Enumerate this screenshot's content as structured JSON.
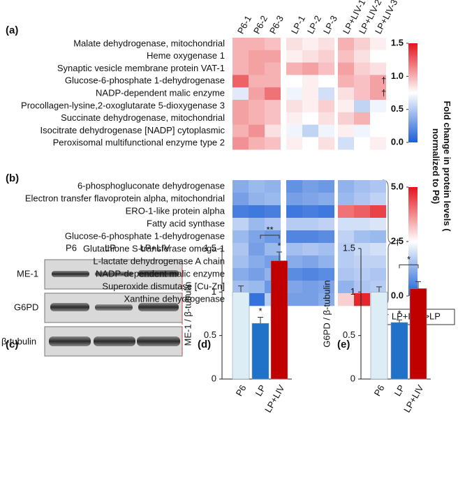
{
  "chart_data": [
    {
      "type": "heatmap",
      "label": "(a)",
      "columns": [
        "P6-1",
        "P6-2",
        "P6-3",
        "LP-1",
        "LP-2",
        "LP-3",
        "LP+LIV-1",
        "LP+LIV-2",
        "LP+LIV-3"
      ],
      "rows": [
        "Malate dehydrogenase, mitochondrial",
        "Heme oxygenase 1",
        "Synaptic vesicle membrane protein VAT-1",
        "Glucose-6-phosphate 1-dehydrogenase",
        "NADP-dependent malic enzyme",
        "Procollagen-lysine,2-oxoglutarate 5-dioxygenase 3",
        "Succinate dehydrogenase, mitochondrial",
        "Isocitrate dehydrogenase [NADP] cytoplasmic",
        "Peroxisomal multifunctional enzyme type 2"
      ],
      "values": [
        [
          1.0,
          1.0,
          0.95,
          0.85,
          0.8,
          0.85,
          1.0,
          0.9,
          0.8
        ],
        [
          1.0,
          1.05,
          1.05,
          0.8,
          0.85,
          0.9,
          0.95,
          0.85,
          0.75
        ],
        [
          1.0,
          1.05,
          1.0,
          1.0,
          1.05,
          0.95,
          1.05,
          0.9,
          0.85
        ],
        [
          1.25,
          1.0,
          1.0,
          0.75,
          0.8,
          0.75,
          1.0,
          0.95,
          1.05
        ],
        [
          0.65,
          1.05,
          1.2,
          0.7,
          0.8,
          0.6,
          0.85,
          0.95,
          1.05
        ],
        [
          1.05,
          1.0,
          0.95,
          0.85,
          0.8,
          0.9,
          0.8,
          0.55,
          0.7
        ],
        [
          1.05,
          1.0,
          0.95,
          0.8,
          0.75,
          0.85,
          0.9,
          1.0,
          0.75
        ],
        [
          1.0,
          1.1,
          0.85,
          0.7,
          0.55,
          0.7,
          0.8,
          0.7,
          0.75
        ],
        [
          1.1,
          1.0,
          0.95,
          0.8,
          0.75,
          0.85,
          0.6,
          0.75,
          0.8
        ]
      ],
      "row_marks": [
        null,
        null,
        null,
        "†",
        "†",
        null,
        null,
        null,
        null
      ],
      "clim": [
        0,
        1.5
      ],
      "cticks": [
        {
          "value": 0,
          "label": "0.0"
        },
        {
          "value": 0.5,
          "label": "0.5"
        },
        {
          "value": 1,
          "label": "1.0"
        },
        {
          "value": 1.5,
          "label": "1.5"
        }
      ],
      "colors": [
        "#1a5fd6",
        "#ffffff",
        "#e3141b"
      ]
    },
    {
      "type": "heatmap",
      "label": "(b)",
      "rows": [
        "6-phosphogluconate dehydrogenase",
        "Electron transfer flavoprotein alpha, mitochondrial",
        "ERO-1-like protein alpha",
        "Fatty acid synthase",
        "Glucose-6-phosphate 1-dehydrogenase",
        "Glutathione S-transferase omega-1",
        "L-lactate dehydrogenase A chain",
        "NADP-dependent malic enzyme",
        "Superoxide dismutase [Cu-Zn]",
        "Xanthine dehydrogenase"
      ],
      "values": [
        [
          1.2,
          1.4,
          1.3,
          0.8,
          1.0,
          0.9,
          1.3,
          1.5,
          1.6
        ],
        [
          1.0,
          1.3,
          1.4,
          1.0,
          1.1,
          1.2,
          1.4,
          1.6,
          1.8
        ],
        [
          0.5,
          0.4,
          0.5,
          0.4,
          0.5,
          0.4,
          4.0,
          4.2,
          4.5
        ],
        [
          1.8,
          1.4,
          1.6,
          1.7,
          1.7,
          1.8,
          2.0,
          2.0,
          2.1
        ],
        [
          1.4,
          1.1,
          0.9,
          0.6,
          0.6,
          0.7,
          1.8,
          1.5,
          1.4
        ],
        [
          1.6,
          1.0,
          1.4,
          1.5,
          1.6,
          1.5,
          1.7,
          1.9,
          2.0
        ],
        [
          1.5,
          1.2,
          1.0,
          1.2,
          1.1,
          1.3,
          1.7,
          1.8,
          1.8
        ],
        [
          1.2,
          1.0,
          1.3,
          0.7,
          0.6,
          0.7,
          1.6,
          1.7,
          1.6
        ],
        [
          1.5,
          1.4,
          0.9,
          1.1,
          1.0,
          1.1,
          1.3,
          1.6,
          1.7
        ],
        [
          1.6,
          0.3,
          1.7,
          1.0,
          1.0,
          1.2,
          3.0,
          4.8,
          2.0
        ]
      ],
      "group_mark": "†",
      "note": "† LP+LIV >LP",
      "clim": [
        0,
        5
      ],
      "cticks": [
        {
          "value": 0,
          "label": "0.0"
        },
        {
          "value": 2.5,
          "label": "2.5"
        },
        {
          "value": 5,
          "label": "5.0"
        }
      ],
      "colors": [
        "#1a5fd6",
        "#ffffff",
        "#e3141b"
      ]
    },
    {
      "type": "bar",
      "label": "(d)",
      "y_label": "ME-1 / β-tubulin",
      "categories": [
        "P6",
        "LP",
        "LP+LIV"
      ],
      "values": [
        1.0,
        0.64,
        1.36
      ],
      "errors": [
        0.07,
        0.07,
        0.1
      ],
      "colors": [
        "#dcedf6",
        "#1f72c8",
        "#c00000"
      ],
      "stars": [
        null,
        "*",
        "*"
      ],
      "bracket": {
        "between": [
          "LP",
          "LP+LIV"
        ],
        "text": "**"
      },
      "ylim": [
        0,
        1.5
      ],
      "yticks": [
        0,
        0.5,
        1,
        1.5
      ]
    },
    {
      "type": "bar",
      "label": "(e)",
      "y_label": "G6PD / β-tubulin",
      "categories": [
        "P6",
        "LP",
        "LP+LIV"
      ],
      "values": [
        1.0,
        0.65,
        1.04
      ],
      "errors": [
        0.06,
        0.03,
        0.08
      ],
      "colors": [
        "#dcedf6",
        "#1f72c8",
        "#c00000"
      ],
      "stars": [
        null,
        "*",
        null
      ],
      "bracket": {
        "between": [
          "LP",
          "LP+LIV"
        ],
        "text": "*"
      },
      "ylim": [
        0,
        1.5
      ],
      "yticks": [
        0,
        0.5,
        1,
        1.5
      ]
    }
  ],
  "colorbar_label": "Fold change in protein levels ( normalized to P6)",
  "blot": {
    "label": "(c)",
    "lanes": [
      "P6",
      "LP",
      "LP+LIV"
    ],
    "rows": [
      "ME-1",
      "G6PD",
      "β-tubulin"
    ]
  }
}
